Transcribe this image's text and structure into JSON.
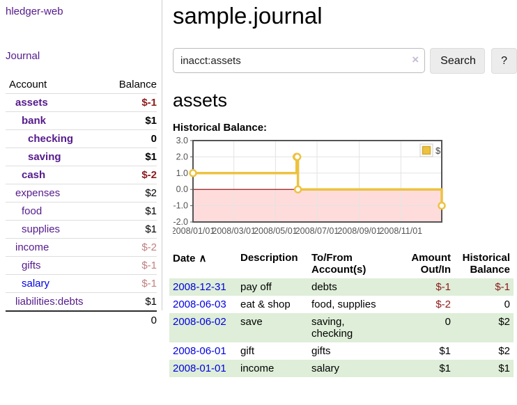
{
  "app": {
    "title": "hledger-web"
  },
  "sidebar": {
    "journal_link": "Journal",
    "accounts_header": {
      "account": "Account",
      "balance": "Balance"
    },
    "accounts": [
      {
        "name": "assets",
        "balance": "$-1",
        "indent": 1,
        "in_account": true,
        "name_color": "purple",
        "balance_class": "neg-strong"
      },
      {
        "name": "bank",
        "balance": "$1",
        "indent": 2,
        "in_account": true,
        "name_color": "purple",
        "balance_class": "pos"
      },
      {
        "name": "checking",
        "balance": "0",
        "indent": 3,
        "in_account": true,
        "name_color": "purple",
        "balance_class": "pos"
      },
      {
        "name": "saving",
        "balance": "$1",
        "indent": 3,
        "in_account": true,
        "name_color": "purple",
        "balance_class": "pos"
      },
      {
        "name": "cash",
        "balance": "$-2",
        "indent": 2,
        "in_account": true,
        "name_color": "purple",
        "balance_class": "neg-strong"
      },
      {
        "name": "expenses",
        "balance": "$2",
        "indent": 1,
        "in_account": false,
        "name_color": "purple",
        "balance_class": "pos"
      },
      {
        "name": "food",
        "balance": "$1",
        "indent": 2,
        "in_account": false,
        "name_color": "purple",
        "balance_class": "pos"
      },
      {
        "name": "supplies",
        "balance": "$1",
        "indent": 2,
        "in_account": false,
        "name_color": "purple",
        "balance_class": "pos"
      },
      {
        "name": "income",
        "balance": "$-2",
        "indent": 1,
        "in_account": false,
        "name_color": "purple",
        "balance_class": "neg-soft"
      },
      {
        "name": "gifts",
        "balance": "$-1",
        "indent": 2,
        "in_account": false,
        "name_color": "purple",
        "balance_class": "neg-soft"
      },
      {
        "name": "salary",
        "balance": "$-1",
        "indent": 2,
        "in_account": false,
        "name_color": "blue",
        "balance_class": "neg-soft"
      },
      {
        "name": "liabilities:debts",
        "balance": "$1",
        "indent": 1,
        "in_account": false,
        "name_color": "purple",
        "balance_class": "pos"
      }
    ],
    "total": "0"
  },
  "main": {
    "title": "sample.journal",
    "search": {
      "value": "inacct:assets",
      "clear_icon": "×",
      "search_button": "Search",
      "help_button": "?"
    },
    "account_heading": "assets"
  },
  "chart_data": {
    "type": "line",
    "style": "step",
    "title": "Historical Balance:",
    "legend": {
      "position": "top-right",
      "entries": [
        {
          "label": "$",
          "color": "#edc240"
        }
      ]
    },
    "x_axis": {
      "range_days": [
        0,
        365
      ],
      "ticks": [
        {
          "day": 0,
          "label": "2008/01/01"
        },
        {
          "day": 60,
          "label": "2008/03/01"
        },
        {
          "day": 121,
          "label": "2008/05/01"
        },
        {
          "day": 182,
          "label": "2008/07/01"
        },
        {
          "day": 244,
          "label": "2008/09/01"
        },
        {
          "day": 305,
          "label": "2008/11/01"
        }
      ]
    },
    "y_axis": {
      "range": [
        -2,
        3
      ],
      "ticks": [
        {
          "value": 3,
          "label": "3.0"
        },
        {
          "value": 2,
          "label": "2.0"
        },
        {
          "value": 1,
          "label": "1.0"
        },
        {
          "value": 0,
          "label": "0.0"
        },
        {
          "value": -1,
          "label": "-1.0"
        },
        {
          "value": -2,
          "label": "-2.0"
        }
      ]
    },
    "series": [
      {
        "name": "$",
        "color": "#edc240",
        "points": [
          {
            "date": "2008-01-01",
            "day": 0,
            "value": 1
          },
          {
            "date": "2008-06-01",
            "day": 152,
            "value": 2
          },
          {
            "date": "2008-06-02",
            "day": 153,
            "value": 2
          },
          {
            "date": "2008-06-03",
            "day": 154,
            "value": 0
          },
          {
            "date": "2008-12-31",
            "day": 365,
            "value": -1
          }
        ]
      }
    ],
    "negative_region": {
      "from": 0,
      "to": -2,
      "color": "#ffdcdc"
    },
    "zero_line_color": "#8b0000",
    "grid": true
  },
  "register": {
    "headers": {
      "date": "Date",
      "sort_icon": "∧",
      "description": "Description",
      "accounts": "To/From\nAccount(s)",
      "amount": "Amount\nOut/In",
      "balance": "Historical\nBalance"
    },
    "rows": [
      {
        "date": "2008-12-31",
        "description": "pay off",
        "accounts": "debts",
        "amount": "$-1",
        "amount_negative": true,
        "balance": "$-1",
        "balance_negative": true
      },
      {
        "date": "2008-06-03",
        "description": "eat & shop",
        "accounts": "food, supplies",
        "amount": "$-2",
        "amount_negative": true,
        "balance": "0",
        "balance_negative": false
      },
      {
        "date": "2008-06-02",
        "description": "save",
        "accounts": "saving,\nchecking",
        "amount": "0",
        "amount_negative": false,
        "balance": "$2",
        "balance_negative": false
      },
      {
        "date": "2008-06-01",
        "description": "gift",
        "accounts": "gifts",
        "amount": "$1",
        "amount_negative": false,
        "balance": "$2",
        "balance_negative": false
      },
      {
        "date": "2008-01-01",
        "description": "income",
        "accounts": "salary",
        "amount": "$1",
        "amount_negative": false,
        "balance": "$1",
        "balance_negative": false
      }
    ]
  },
  "colors": {
    "link_purple": "#551a8b",
    "link_blue": "#0000e0",
    "negative_strong": "#8b1a1a",
    "negative_soft": "#bf8080",
    "row_green": "#deeed8",
    "chart_gold": "#edc240",
    "chart_border": "#545454",
    "negative_zone": "#ffdcdc",
    "zero_line": "#8b0000"
  }
}
